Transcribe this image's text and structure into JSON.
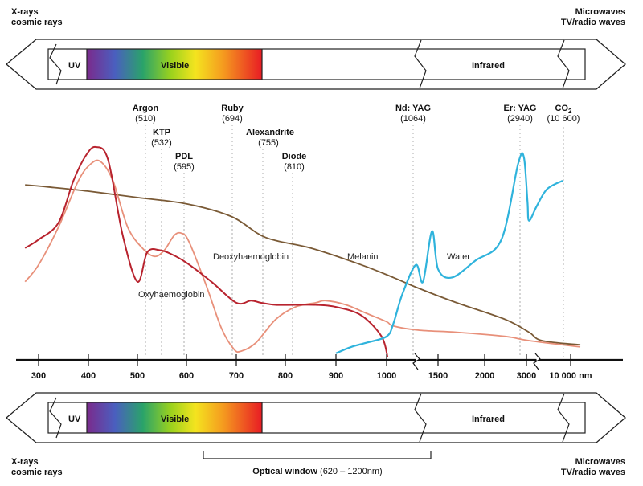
{
  "edge_labels": {
    "top_left": [
      "X-rays",
      "cosmic rays"
    ],
    "top_right": [
      "Microwaves",
      "TV/radio waves"
    ],
    "bottom_left": [
      "X-rays",
      "cosmic rays"
    ],
    "bottom_right": [
      "Microwaves",
      "TV/radio waves"
    ]
  },
  "bands": {
    "uv": "UV",
    "visible": "Visible",
    "infrared": "Infrared"
  },
  "optical_window": {
    "label": "Optical window",
    "range": "(620 – 1200nm)"
  },
  "colors": {
    "oxyhaemoglobin": "#e8907a",
    "deoxyhaemoglobin": "#b8232e",
    "melanin": "#7a5a36",
    "water": "#2fb3dc",
    "uv_band": "#7b2a8c"
  },
  "chart_data": {
    "type": "line",
    "xlabel": "",
    "ylabel": "",
    "x_ticks": [
      "300",
      "400",
      "500",
      "600",
      "700",
      "800",
      "900",
      "1000",
      "1500",
      "2000",
      "3000",
      "10 000 nm"
    ],
    "lasers": [
      {
        "name": "Argon",
        "wavelength": "(510)"
      },
      {
        "name": "KTP",
        "wavelength": "(532)"
      },
      {
        "name": "PDL",
        "wavelength": "(595)"
      },
      {
        "name": "Ruby",
        "wavelength": "(694)"
      },
      {
        "name": "Alexandrite",
        "wavelength": "(755)"
      },
      {
        "name": "Diode",
        "wavelength": "(810)"
      },
      {
        "name": "Nd: YAG",
        "wavelength": "(1064)"
      },
      {
        "name": "Er: YAG",
        "wavelength": "(2940)"
      },
      {
        "name": "CO",
        "sub": "2",
        "wavelength": "(10 600)"
      }
    ],
    "series_labels": {
      "deoxy": "Deoxyhaemoglobin",
      "oxy": "Oxyhaemoglobin",
      "melanin": "Melanin",
      "water": "Water"
    },
    "series": {
      "deoxy": [
        [
          270,
          0.52
        ],
        [
          300,
          0.56
        ],
        [
          340,
          0.64
        ],
        [
          370,
          0.84
        ],
        [
          395,
          0.96
        ],
        [
          415,
          1.0
        ],
        [
          440,
          0.94
        ],
        [
          470,
          0.58
        ],
        [
          500,
          0.36
        ],
        [
          520,
          0.5
        ],
        [
          545,
          0.51
        ],
        [
          570,
          0.49
        ],
        [
          600,
          0.45
        ],
        [
          650,
          0.36
        ],
        [
          700,
          0.26
        ],
        [
          730,
          0.27
        ],
        [
          750,
          0.26
        ],
        [
          780,
          0.25
        ],
        [
          820,
          0.25
        ],
        [
          860,
          0.25
        ],
        [
          900,
          0.24
        ],
        [
          950,
          0.2
        ],
        [
          990,
          0.1
        ],
        [
          1010,
          0.0
        ]
      ],
      "oxy": [
        [
          270,
          0.36
        ],
        [
          300,
          0.44
        ],
        [
          340,
          0.62
        ],
        [
          380,
          0.84
        ],
        [
          405,
          0.92
        ],
        [
          425,
          0.93
        ],
        [
          450,
          0.84
        ],
        [
          480,
          0.62
        ],
        [
          510,
          0.52
        ],
        [
          535,
          0.48
        ],
        [
          555,
          0.51
        ],
        [
          575,
          0.58
        ],
        [
          590,
          0.59
        ],
        [
          605,
          0.55
        ],
        [
          640,
          0.34
        ],
        [
          670,
          0.14
        ],
        [
          695,
          0.04
        ],
        [
          710,
          0.03
        ],
        [
          740,
          0.07
        ],
        [
          780,
          0.18
        ],
        [
          820,
          0.24
        ],
        [
          860,
          0.26
        ],
        [
          880,
          0.27
        ],
        [
          920,
          0.25
        ],
        [
          960,
          0.21
        ],
        [
          1000,
          0.17
        ],
        [
          1064,
          0.15
        ],
        [
          1300,
          0.13
        ],
        [
          1700,
          0.12
        ],
        [
          2500,
          0.1
        ],
        [
          3500,
          0.08
        ],
        [
          12000,
          0.05
        ]
      ],
      "melanin": [
        [
          270,
          0.82
        ],
        [
          320,
          0.81
        ],
        [
          400,
          0.79
        ],
        [
          500,
          0.76
        ],
        [
          600,
          0.73
        ],
        [
          690,
          0.67
        ],
        [
          760,
          0.57
        ],
        [
          850,
          0.52
        ],
        [
          950,
          0.44
        ],
        [
          1064,
          0.38
        ],
        [
          1300,
          0.33
        ],
        [
          1700,
          0.26
        ],
        [
          2500,
          0.18
        ],
        [
          3500,
          0.12
        ],
        [
          6000,
          0.08
        ],
        [
          12000,
          0.06
        ]
      ],
      "water": [
        [
          900,
          0.02
        ],
        [
          930,
          0.05
        ],
        [
          960,
          0.07
        ],
        [
          1000,
          0.1
        ],
        [
          1064,
          0.16
        ],
        [
          1150,
          0.3
        ],
        [
          1280,
          0.44
        ],
        [
          1350,
          0.36
        ],
        [
          1440,
          0.6
        ],
        [
          1500,
          0.42
        ],
        [
          1650,
          0.38
        ],
        [
          1900,
          0.46
        ],
        [
          2400,
          0.56
        ],
        [
          2800,
          0.92
        ],
        [
          2940,
          0.95
        ],
        [
          3200,
          0.74
        ],
        [
          3500,
          0.65
        ],
        [
          5000,
          0.72
        ],
        [
          7000,
          0.8
        ],
        [
          10000,
          0.84
        ]
      ]
    }
  }
}
